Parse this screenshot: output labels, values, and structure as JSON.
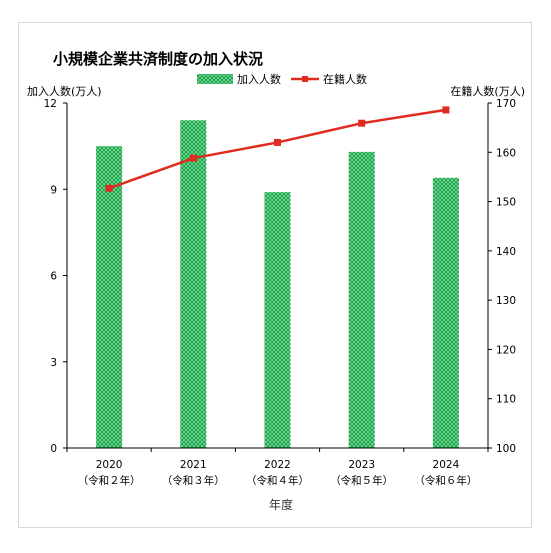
{
  "chart_data": {
    "type": "bar",
    "title": "小規模企業共済制度の加入状況",
    "xlabel": "年度",
    "categories": [
      "2020",
      "2021",
      "2022",
      "2023",
      "2024"
    ],
    "category_sublabels": [
      "（令和２年）",
      "（令和３年）",
      "（令和４年）",
      "（令和５年）",
      "（令和６年）"
    ],
    "y_left": {
      "label": "加入人数(万人)",
      "range": [
        0,
        12
      ],
      "ticks": [
        "0",
        "3",
        "6",
        "9",
        "12"
      ]
    },
    "y_right": {
      "label": "在籍人数(万人)",
      "range": [
        100,
        170
      ],
      "ticks": [
        "100",
        "110",
        "120",
        "130",
        "140",
        "150",
        "160",
        "170"
      ]
    },
    "series": [
      {
        "name": "加入人数",
        "type": "bar",
        "axis": "left",
        "color": "#1aab4b",
        "pattern": "white-dots",
        "values": [
          10.5,
          11.4,
          8.9,
          10.3,
          9.4
        ]
      },
      {
        "name": "在籍人数",
        "type": "line",
        "axis": "right",
        "color": "#e02b20",
        "marker": "square",
        "values": [
          152.7,
          158.8,
          162.0,
          165.9,
          168.6
        ]
      }
    ],
    "legend_position": "top-center",
    "grid": false
  }
}
